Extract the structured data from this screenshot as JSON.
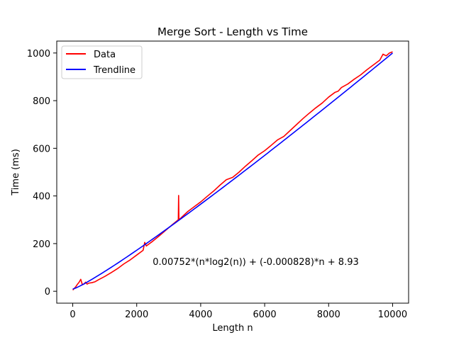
{
  "chart_data": {
    "type": "line",
    "title": "Merge Sort - Length vs Time",
    "xlabel": "Length n",
    "ylabel": "Time (ms)",
    "xlim": [
      -500,
      10500
    ],
    "ylim": [
      -50,
      1050
    ],
    "xticks": [
      0,
      2000,
      4000,
      6000,
      8000,
      10000
    ],
    "yticks": [
      0,
      200,
      400,
      600,
      800,
      1000
    ],
    "grid": false,
    "legend_position": "upper left",
    "annotation": {
      "text": "0.00752*(n*log2(n)) + (-0.000828)*n + 8.93",
      "x": 2500,
      "y": 125
    },
    "trend_formula": {
      "a": 0.00752,
      "b": -0.000828,
      "c": 8.93
    },
    "series": [
      {
        "name": "Data",
        "color": "#ff0000",
        "points": [
          [
            0,
            5
          ],
          [
            50,
            12
          ],
          [
            100,
            20
          ],
          [
            150,
            30
          ],
          [
            200,
            38
          ],
          [
            250,
            50
          ],
          [
            300,
            28
          ],
          [
            350,
            30
          ],
          [
            400,
            38
          ],
          [
            450,
            30
          ],
          [
            500,
            34
          ],
          [
            600,
            36
          ],
          [
            700,
            40
          ],
          [
            800,
            48
          ],
          [
            900,
            55
          ],
          [
            1000,
            62
          ],
          [
            1200,
            78
          ],
          [
            1400,
            95
          ],
          [
            1600,
            115
          ],
          [
            1800,
            132
          ],
          [
            2000,
            152
          ],
          [
            2200,
            172
          ],
          [
            2250,
            205
          ],
          [
            2300,
            190
          ],
          [
            2500,
            210
          ],
          [
            2700,
            232
          ],
          [
            2900,
            255
          ],
          [
            3100,
            278
          ],
          [
            3300,
            300
          ],
          [
            3310,
            402
          ],
          [
            3320,
            300
          ],
          [
            3400,
            310
          ],
          [
            3600,
            335
          ],
          [
            3800,
            355
          ],
          [
            4000,
            375
          ],
          [
            4200,
            398
          ],
          [
            4400,
            420
          ],
          [
            4600,
            445
          ],
          [
            4800,
            468
          ],
          [
            5000,
            478
          ],
          [
            5200,
            500
          ],
          [
            5400,
            525
          ],
          [
            5600,
            548
          ],
          [
            5800,
            572
          ],
          [
            6000,
            590
          ],
          [
            6200,
            612
          ],
          [
            6400,
            635
          ],
          [
            6600,
            650
          ],
          [
            6800,
            675
          ],
          [
            7000,
            700
          ],
          [
            7200,
            725
          ],
          [
            7400,
            748
          ],
          [
            7600,
            770
          ],
          [
            7800,
            790
          ],
          [
            8000,
            815
          ],
          [
            8200,
            835
          ],
          [
            8300,
            840
          ],
          [
            8400,
            855
          ],
          [
            8600,
            870
          ],
          [
            8800,
            890
          ],
          [
            9000,
            908
          ],
          [
            9200,
            930
          ],
          [
            9400,
            950
          ],
          [
            9600,
            970
          ],
          [
            9700,
            995
          ],
          [
            9800,
            988
          ],
          [
            9900,
            1000
          ],
          [
            10000,
            1005
          ]
        ]
      },
      {
        "name": "Trendline",
        "color": "#0000ff"
      }
    ]
  }
}
